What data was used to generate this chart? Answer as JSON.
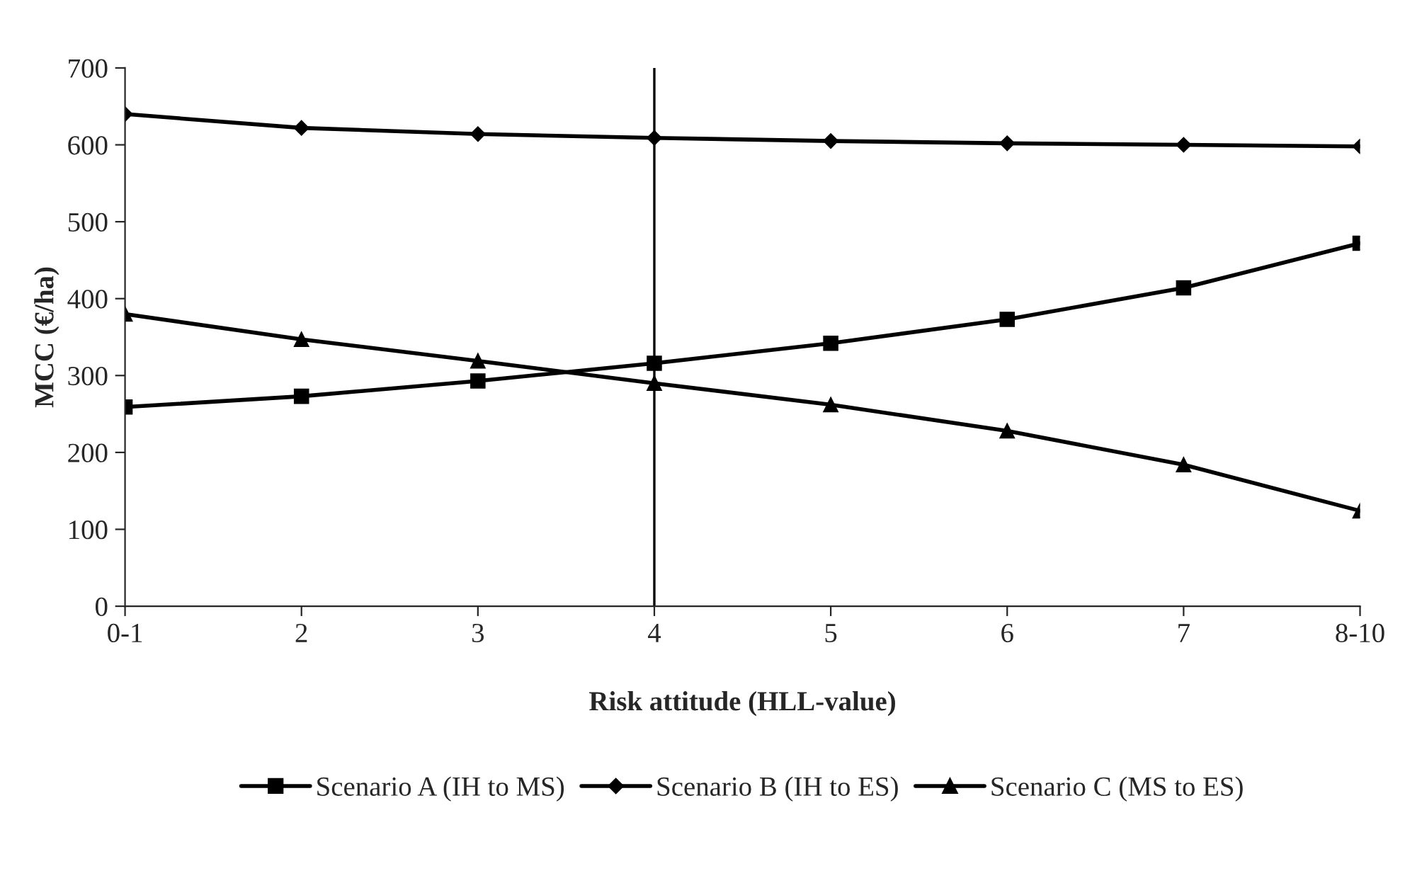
{
  "chart_data": {
    "type": "line",
    "xlabel": "Risk attitude (HLL-value)",
    "ylabel": "MCC (€/ha)",
    "categories": [
      "0-1",
      "2",
      "3",
      "4",
      "5",
      "6",
      "7",
      "8-10"
    ],
    "series": [
      {
        "name": "Scenario A (IH to MS)",
        "color": "#000000",
        "marker": "square",
        "values": [
          259,
          273,
          293,
          316,
          342,
          373,
          414,
          472
        ]
      },
      {
        "name": "Scenario B (IH to ES)",
        "color": "#000000",
        "marker": "diamond",
        "values": [
          640,
          622,
          614,
          609,
          605,
          602,
          600,
          598
        ]
      },
      {
        "name": "Scenario C (MS to ES)",
        "color": "#000000",
        "marker": "triangle",
        "values": [
          380,
          347,
          319,
          290,
          262,
          228,
          184,
          124
        ]
      }
    ],
    "ylim": [
      0,
      700
    ],
    "yticks": [
      0,
      100,
      200,
      300,
      400,
      500,
      600,
      700
    ],
    "ref_lines": [
      {
        "axis": "x",
        "value": "4",
        "color": "#000000"
      }
    ],
    "grid": false,
    "legend": "bottom",
    "line_style": "solid"
  }
}
